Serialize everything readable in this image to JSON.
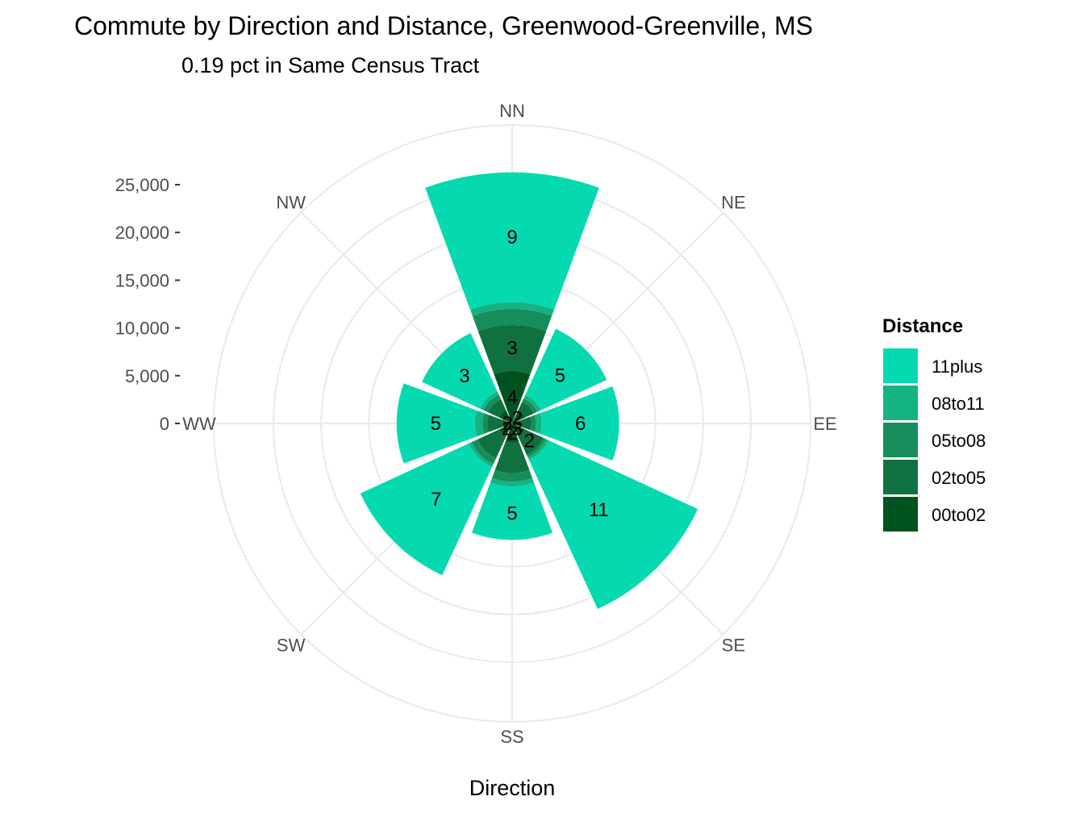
{
  "chart_data": {
    "type": "polar-stacked-bar",
    "title": "Commute by Direction and Distance, Greenwood-Greenville, MS",
    "subtitle": "0.19 pct in Same Census Tract",
    "xlabel": "Direction",
    "ylabel": "",
    "ylim": [
      0,
      25000
    ],
    "y_ticks": [
      0,
      5000,
      10000,
      15000,
      20000,
      25000
    ],
    "y_tick_labels": [
      "0",
      "5,000",
      "10,000",
      "15,000",
      "20,000",
      "25,000"
    ],
    "categories": [
      "NN",
      "NE",
      "EE",
      "SE",
      "SS",
      "SW",
      "WW",
      "NW"
    ],
    "grid": true,
    "legend": {
      "title": "Distance",
      "position": "right",
      "entries": [
        "11plus",
        "08to11",
        "05to08",
        "02to05",
        "00to02"
      ]
    },
    "series": [
      {
        "name": "00to02",
        "color": "#00531f",
        "values": [
          5500,
          1500,
          900,
          1500,
          2000,
          1500,
          1000,
          1500
        ],
        "labels": [
          "4",
          "2",
          "",
          "3",
          "2",
          "2",
          "2",
          ""
        ]
      },
      {
        "name": "02to05",
        "color": "#0f7040",
        "values": [
          4800,
          1000,
          1100,
          2100,
          3200,
          2500,
          1600,
          1300
        ],
        "labels": [
          "3",
          "",
          "",
          "2",
          "",
          "",
          "",
          ""
        ]
      },
      {
        "name": "05to08",
        "color": "#178d5b",
        "values": [
          1700,
          400,
          500,
          300,
          900,
          700,
          500,
          500
        ],
        "labels": [
          "",
          "",
          "",
          "",
          "",
          "",
          "",
          ""
        ]
      },
      {
        "name": "08to11",
        "color": "#14b381",
        "values": [
          700,
          400,
          600,
          300,
          500,
          300,
          800,
          400
        ],
        "labels": [
          "",
          "",
          "",
          "",
          "",
          "",
          "",
          ""
        ]
      },
      {
        "name": "11plus",
        "color": "#05d9af",
        "values": [
          13600,
          7600,
          8100,
          17200,
          5600,
          12500,
          8200,
          6700
        ],
        "labels": [
          "9",
          "5",
          "6",
          "11",
          "5",
          "7",
          "5",
          "3"
        ]
      }
    ]
  }
}
